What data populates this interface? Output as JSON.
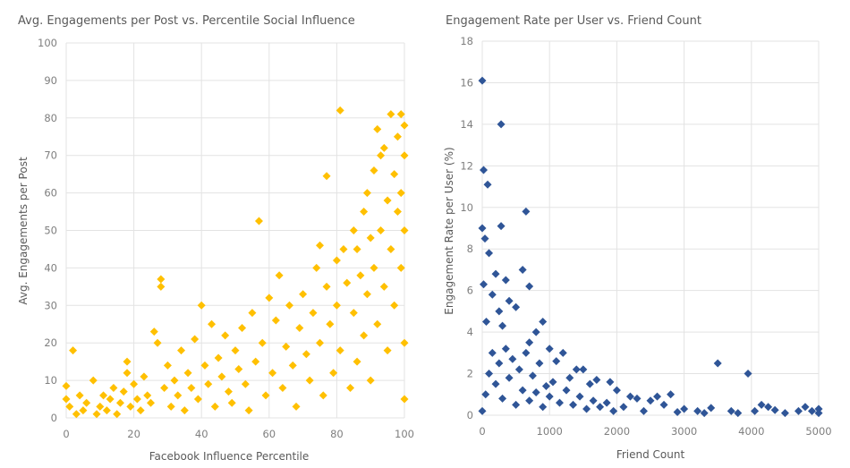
{
  "chart_data": [
    {
      "type": "scatter",
      "title": "Avg. Engagements per Post vs. Percentile Social Influence",
      "xlabel": "Facebook Influence Percentile",
      "ylabel": "Avg. Engagements per Post",
      "xlim": [
        0,
        100
      ],
      "ylim": [
        0,
        100
      ],
      "xticks": [
        0,
        20,
        40,
        60,
        80,
        100
      ],
      "yticks": [
        0,
        10,
        20,
        30,
        40,
        50,
        60,
        70,
        80,
        90,
        100
      ],
      "grid": true,
      "marker": "diamond",
      "color": "#FFC000",
      "points": [
        [
          0,
          8.5
        ],
        [
          0,
          5
        ],
        [
          1,
          3
        ],
        [
          2,
          18
        ],
        [
          3,
          1
        ],
        [
          4,
          6
        ],
        [
          5,
          2
        ],
        [
          6,
          4
        ],
        [
          8,
          10
        ],
        [
          9,
          1
        ],
        [
          10,
          3
        ],
        [
          11,
          6
        ],
        [
          12,
          2
        ],
        [
          13,
          5
        ],
        [
          14,
          8
        ],
        [
          15,
          1
        ],
        [
          16,
          4
        ],
        [
          17,
          7
        ],
        [
          18,
          15
        ],
        [
          18,
          12
        ],
        [
          19,
          3
        ],
        [
          20,
          9
        ],
        [
          21,
          5
        ],
        [
          22,
          2
        ],
        [
          23,
          11
        ],
        [
          24,
          6
        ],
        [
          25,
          4
        ],
        [
          26,
          23
        ],
        [
          27,
          20
        ],
        [
          28,
          37
        ],
        [
          28,
          35
        ],
        [
          29,
          8
        ],
        [
          30,
          14
        ],
        [
          31,
          3
        ],
        [
          32,
          10
        ],
        [
          33,
          6
        ],
        [
          34,
          18
        ],
        [
          35,
          2
        ],
        [
          36,
          12
        ],
        [
          37,
          8
        ],
        [
          38,
          21
        ],
        [
          39,
          5
        ],
        [
          40,
          30
        ],
        [
          41,
          14
        ],
        [
          42,
          9
        ],
        [
          43,
          25
        ],
        [
          44,
          3
        ],
        [
          45,
          16
        ],
        [
          46,
          11
        ],
        [
          47,
          22
        ],
        [
          48,
          7
        ],
        [
          49,
          4
        ],
        [
          50,
          18
        ],
        [
          51,
          13
        ],
        [
          52,
          24
        ],
        [
          53,
          9
        ],
        [
          54,
          2
        ],
        [
          55,
          28
        ],
        [
          56,
          15
        ],
        [
          57,
          52.5
        ],
        [
          58,
          20
        ],
        [
          59,
          6
        ],
        [
          60,
          32
        ],
        [
          61,
          12
        ],
        [
          62,
          26
        ],
        [
          63,
          38
        ],
        [
          64,
          8
        ],
        [
          65,
          19
        ],
        [
          66,
          30
        ],
        [
          67,
          14
        ],
        [
          68,
          3
        ],
        [
          69,
          24
        ],
        [
          70,
          33
        ],
        [
          71,
          17
        ],
        [
          72,
          10
        ],
        [
          73,
          28
        ],
        [
          74,
          40
        ],
        [
          75,
          46
        ],
        [
          75,
          20
        ],
        [
          76,
          6
        ],
        [
          77,
          64.5
        ],
        [
          77,
          35
        ],
        [
          78,
          25
        ],
        [
          79,
          12
        ],
        [
          80,
          42
        ],
        [
          80,
          30
        ],
        [
          81,
          82
        ],
        [
          81,
          18
        ],
        [
          82,
          45
        ],
        [
          83,
          36
        ],
        [
          84,
          8
        ],
        [
          85,
          50
        ],
        [
          85,
          28
        ],
        [
          86,
          45
        ],
        [
          86,
          15
        ],
        [
          87,
          38
        ],
        [
          88,
          55
        ],
        [
          88,
          22
        ],
        [
          89,
          60
        ],
        [
          89,
          33
        ],
        [
          90,
          48
        ],
        [
          90,
          10
        ],
        [
          91,
          66
        ],
        [
          91,
          40
        ],
        [
          92,
          77
        ],
        [
          92,
          25
        ],
        [
          93,
          50
        ],
        [
          93,
          70
        ],
        [
          94,
          72
        ],
        [
          94,
          35
        ],
        [
          95,
          58
        ],
        [
          95,
          18
        ],
        [
          96,
          81
        ],
        [
          96,
          45
        ],
        [
          97,
          65
        ],
        [
          97,
          30
        ],
        [
          98,
          75
        ],
        [
          98,
          55
        ],
        [
          99,
          81
        ],
        [
          99,
          60
        ],
        [
          99,
          40
        ],
        [
          100,
          78
        ],
        [
          100,
          70
        ],
        [
          100,
          50
        ],
        [
          100,
          20
        ],
        [
          100,
          5
        ]
      ]
    },
    {
      "type": "scatter",
      "title": "Engagement Rate per User vs. Friend Count",
      "xlabel": "Friend Count",
      "ylabel": "Engagement Rate per User (%)",
      "xlim": [
        0,
        5000
      ],
      "ylim": [
        0,
        18
      ],
      "xticks": [
        0,
        1000,
        2000,
        3000,
        4000,
        5000
      ],
      "yticks": [
        0,
        2,
        4,
        6,
        8,
        10,
        12,
        14,
        16,
        18
      ],
      "grid": true,
      "marker": "diamond",
      "color": "#2F5597",
      "points": [
        [
          0,
          16.1
        ],
        [
          20,
          11.8
        ],
        [
          80,
          11.1
        ],
        [
          280,
          14
        ],
        [
          280,
          9.1
        ],
        [
          650,
          9.8
        ],
        [
          0,
          9
        ],
        [
          40,
          8.5
        ],
        [
          100,
          7.8
        ],
        [
          200,
          6.8
        ],
        [
          350,
          6.5
        ],
        [
          600,
          7
        ],
        [
          700,
          6.2
        ],
        [
          20,
          6.3
        ],
        [
          150,
          5.8
        ],
        [
          400,
          5.5
        ],
        [
          250,
          5
        ],
        [
          500,
          5.2
        ],
        [
          60,
          4.5
        ],
        [
          300,
          4.3
        ],
        [
          800,
          4
        ],
        [
          900,
          4.5
        ],
        [
          700,
          3.5
        ],
        [
          1000,
          3.2
        ],
        [
          1200,
          3
        ],
        [
          1100,
          2.6
        ],
        [
          1400,
          2.2
        ],
        [
          1500,
          2.2
        ],
        [
          1300,
          1.8
        ],
        [
          1600,
          1.5
        ],
        [
          1700,
          1.7
        ],
        [
          1900,
          1.6
        ],
        [
          2000,
          1.2
        ],
        [
          2200,
          0.9
        ],
        [
          2300,
          0.8
        ],
        [
          2500,
          0.7
        ],
        [
          2600,
          0.9
        ],
        [
          2800,
          1
        ],
        [
          2700,
          0.5
        ],
        [
          3000,
          0.3
        ],
        [
          3200,
          0.2
        ],
        [
          3400,
          0.35
        ],
        [
          3500,
          2.5
        ],
        [
          3700,
          0.2
        ],
        [
          3950,
          2
        ],
        [
          4050,
          0.2
        ],
        [
          4150,
          0.5
        ],
        [
          4250,
          0.4
        ],
        [
          4350,
          0.25
        ],
        [
          4500,
          0.1
        ],
        [
          4700,
          0.2
        ],
        [
          4800,
          0.4
        ],
        [
          4900,
          0.2
        ],
        [
          5000,
          0.3
        ],
        [
          5000,
          0.1
        ],
        [
          0,
          0.2
        ],
        [
          50,
          1
        ],
        [
          100,
          2
        ],
        [
          150,
          3
        ],
        [
          200,
          1.5
        ],
        [
          250,
          2.5
        ],
        [
          300,
          0.8
        ],
        [
          350,
          3.2
        ],
        [
          400,
          1.8
        ],
        [
          450,
          2.7
        ],
        [
          500,
          0.5
        ],
        [
          550,
          2.2
        ],
        [
          600,
          1.2
        ],
        [
          650,
          3
        ],
        [
          700,
          0.7
        ],
        [
          750,
          1.9
        ],
        [
          800,
          1.1
        ],
        [
          850,
          2.5
        ],
        [
          900,
          0.4
        ],
        [
          950,
          1.4
        ],
        [
          1000,
          0.9
        ],
        [
          1050,
          1.6
        ],
        [
          1150,
          0.6
        ],
        [
          1250,
          1.2
        ],
        [
          1350,
          0.5
        ],
        [
          1450,
          0.9
        ],
        [
          1550,
          0.3
        ],
        [
          1650,
          0.7
        ],
        [
          1750,
          0.4
        ],
        [
          1850,
          0.6
        ],
        [
          1950,
          0.2
        ],
        [
          2100,
          0.4
        ],
        [
          2400,
          0.2
        ],
        [
          2900,
          0.15
        ],
        [
          3300,
          0.1
        ],
        [
          3800,
          0.1
        ]
      ]
    }
  ]
}
